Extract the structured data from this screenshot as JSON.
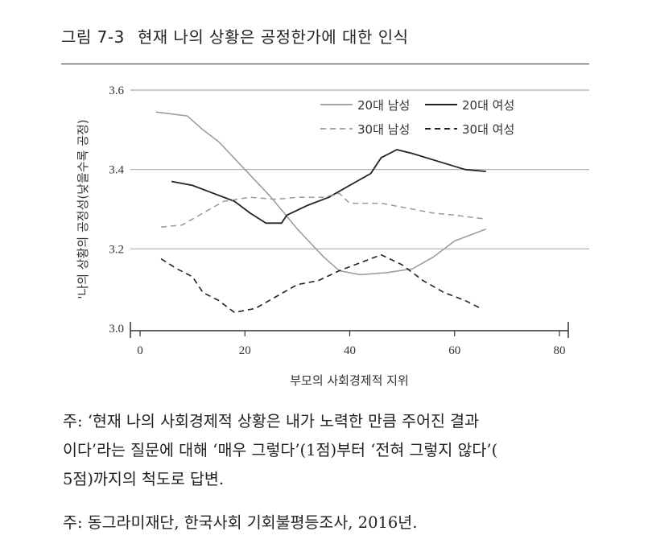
{
  "title": {
    "figure_number": "그림 7-3",
    "text": "현재 나의 상황은 공정한가에 대한 인식"
  },
  "notes": [
    "주: ‘현재 나의 사회경제적 상황은 내가 노력한 만큼 주어진 결과",
    "이다’라는 질문에 대해 ‘매우 그렇다’(1점)부터 ‘전혀 그렇지 않다’(",
    "5점)까지의 척도로 답변.",
    "주: 동그라미재단, 한국사회 기회불평등조사, 2016년."
  ],
  "chart_data": {
    "type": "line",
    "title": "현재 나의 상황은 공정한가에 대한 인식",
    "xlabel": "부모의 사회경제적 지위",
    "ylabel": "'나의 상황의 공정성(낮을수록 공정)",
    "xlim": [
      0,
      80
    ],
    "ylim": [
      3.0,
      3.6
    ],
    "xticks": [
      "0",
      "20",
      "40",
      "60",
      "80"
    ],
    "yticks": [
      "3.0",
      "3.2",
      "3.4",
      "3.6"
    ],
    "grid": "horizontal",
    "legend_position": "top-right",
    "series": [
      {
        "name": "20대 남성",
        "color": "#999999",
        "dash": "solid",
        "width": 1.5,
        "x": [
          3,
          9,
          12,
          15,
          20,
          25,
          30,
          35,
          38,
          42,
          47,
          52,
          56,
          60,
          66
        ],
        "y": [
          3.545,
          3.535,
          3.5,
          3.47,
          3.4,
          3.33,
          3.25,
          3.18,
          3.145,
          3.135,
          3.14,
          3.15,
          3.18,
          3.22,
          3.25
        ]
      },
      {
        "name": "20대 여성",
        "color": "#222222",
        "dash": "solid",
        "width": 1.8,
        "x": [
          6,
          10,
          14,
          18,
          21,
          24,
          27,
          28,
          32,
          36,
          40,
          44,
          46,
          49,
          52,
          57,
          62,
          66
        ],
        "y": [
          3.37,
          3.36,
          3.34,
          3.32,
          3.29,
          3.265,
          3.265,
          3.285,
          3.31,
          3.33,
          3.36,
          3.39,
          3.43,
          3.45,
          3.44,
          3.42,
          3.4,
          3.395
        ]
      },
      {
        "name": "30대 남성",
        "color": "#999999",
        "dash": "dashed",
        "width": 1.5,
        "x": [
          4,
          8,
          12,
          16,
          21,
          26,
          30,
          35,
          38,
          40,
          46,
          50,
          56,
          60,
          66
        ],
        "y": [
          3.255,
          3.26,
          3.29,
          3.32,
          3.33,
          3.325,
          3.33,
          3.33,
          3.34,
          3.315,
          3.315,
          3.305,
          3.29,
          3.285,
          3.275
        ]
      },
      {
        "name": "30대 여성",
        "color": "#222222",
        "dash": "dashed",
        "width": 1.6,
        "x": [
          4,
          7,
          10,
          12,
          15,
          18,
          22,
          26,
          30,
          34,
          38,
          42,
          46,
          50,
          54,
          58,
          62,
          65
        ],
        "y": [
          3.175,
          3.15,
          3.13,
          3.09,
          3.07,
          3.04,
          3.05,
          3.08,
          3.11,
          3.12,
          3.145,
          3.165,
          3.185,
          3.16,
          3.12,
          3.09,
          3.07,
          3.05
        ]
      }
    ]
  }
}
